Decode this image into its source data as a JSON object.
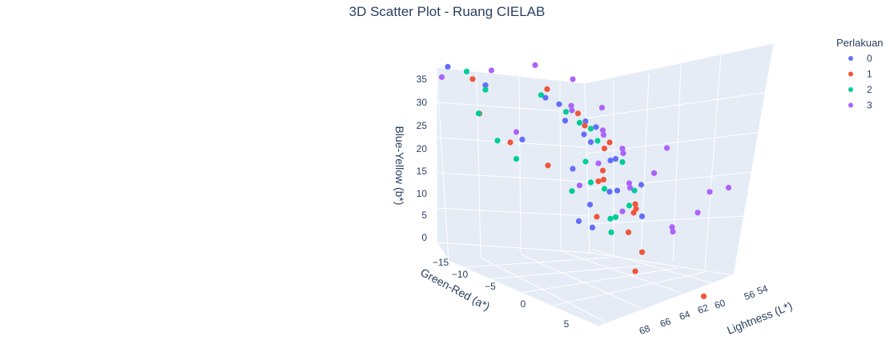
{
  "chart_data": {
    "type": "scatter3d",
    "title": "3D Scatter Plot - Ruang CIELAB",
    "xlabel": "Lightness (L*)",
    "ylabel": "Green-Red (a*)",
    "zlabel": "Blue-Yellow (b*)",
    "x_ticks": [
      "54",
      "56",
      "60",
      "62",
      "64",
      "66",
      "68"
    ],
    "y_ticks": [
      "−15",
      "−10",
      "−5",
      "0",
      "5"
    ],
    "z_ticks": [
      "35",
      "30",
      "25",
      "20",
      "15",
      "10",
      "5",
      "0"
    ],
    "legend": {
      "title": "Perlakuan",
      "placement": "top-right",
      "entries": [
        {
          "name": "0",
          "color": "#636efa"
        },
        {
          "name": "1",
          "color": "#ef553b"
        },
        {
          "name": "2",
          "color": "#00cc96"
        },
        {
          "name": "3",
          "color": "#ab63fa"
        }
      ]
    },
    "grid": true,
    "series": [
      {
        "name": "0",
        "color": "#636efa",
        "points": [
          [
            60,
            -4,
            29
          ],
          [
            60,
            -3,
            26
          ],
          [
            61,
            -2,
            24
          ],
          [
            62,
            -3,
            22
          ],
          [
            63,
            -1,
            20
          ],
          [
            64,
            -4,
            18
          ],
          [
            62,
            -6,
            14
          ],
          [
            63,
            -2,
            12
          ],
          [
            65,
            -5,
            11
          ],
          [
            61,
            -1,
            9
          ],
          [
            66,
            -3,
            7
          ],
          [
            62,
            -5,
            3
          ],
          [
            64,
            -7,
            1
          ],
          [
            58,
            -12,
            27
          ],
          [
            56,
            -14,
            29
          ],
          [
            59,
            -8,
            18
          ],
          [
            61,
            0,
            27
          ],
          [
            58,
            -2,
            31
          ],
          [
            63,
            -6,
            25
          ],
          [
            65,
            -1,
            15
          ]
        ]
      },
      {
        "name": "1",
        "color": "#ef553b",
        "points": [
          [
            61,
            -3,
            28
          ],
          [
            62,
            -4,
            25
          ],
          [
            63,
            -2,
            23
          ],
          [
            64,
            -5,
            20
          ],
          [
            62,
            -1,
            17
          ],
          [
            63,
            -3,
            14
          ],
          [
            64,
            -6,
            12
          ],
          [
            65,
            -2,
            10
          ],
          [
            66,
            -4,
            8
          ],
          [
            62,
            -2,
            6
          ],
          [
            64,
            -1,
            4
          ],
          [
            66,
            -3,
            -1
          ],
          [
            65,
            -2,
            -5
          ],
          [
            68,
            3,
            -6
          ],
          [
            57,
            -12,
            28
          ],
          [
            58,
            -13,
            20
          ],
          [
            59,
            -10,
            16
          ],
          [
            60,
            -6,
            31
          ],
          [
            61,
            -8,
            13
          ],
          [
            63,
            2,
            10
          ]
        ]
      },
      {
        "name": "2",
        "color": "#00cc96",
        "points": [
          [
            61,
            -5,
            27
          ],
          [
            62,
            -3,
            25
          ],
          [
            63,
            -4,
            22
          ],
          [
            64,
            -2,
            19
          ],
          [
            63,
            -6,
            16
          ],
          [
            62,
            -3,
            13
          ],
          [
            64,
            -5,
            11
          ],
          [
            65,
            -3,
            9
          ],
          [
            63,
            -1,
            7
          ],
          [
            64,
            -4,
            5
          ],
          [
            65,
            -6,
            1
          ],
          [
            57,
            -13,
            29
          ],
          [
            58,
            -12,
            26
          ],
          [
            57,
            -11,
            21
          ],
          [
            58,
            -10,
            16
          ],
          [
            59,
            -9,
            13
          ],
          [
            60,
            -7,
            29
          ],
          [
            61,
            -4,
            10
          ],
          [
            63,
            -7,
            24
          ],
          [
            64,
            0,
            14
          ]
        ]
      },
      {
        "name": "3",
        "color": "#ab63fa",
        "points": [
          [
            60,
            -2,
            30
          ],
          [
            61,
            -4,
            28
          ],
          [
            62,
            -1,
            26
          ],
          [
            63,
            -3,
            24
          ],
          [
            64,
            -2,
            22
          ],
          [
            65,
            -4,
            20
          ],
          [
            66,
            -1,
            18
          ],
          [
            64,
            -6,
            16
          ],
          [
            65,
            -3,
            14
          ],
          [
            66,
            -5,
            12
          ],
          [
            63,
            -7,
            10
          ],
          [
            64,
            -2,
            8
          ],
          [
            67,
            0,
            6
          ],
          [
            68,
            2,
            12
          ],
          [
            68,
            4,
            18
          ],
          [
            69,
            5,
            20
          ],
          [
            59,
            -9,
            19
          ],
          [
            56,
            -15,
            26
          ],
          [
            58,
            -11,
            31
          ],
          [
            60,
            -8,
            35
          ],
          [
            62,
            -6,
            34
          ],
          [
            61,
            1,
            32
          ],
          [
            66,
            2,
            8
          ],
          [
            67,
            -1,
            24
          ]
        ]
      }
    ]
  }
}
